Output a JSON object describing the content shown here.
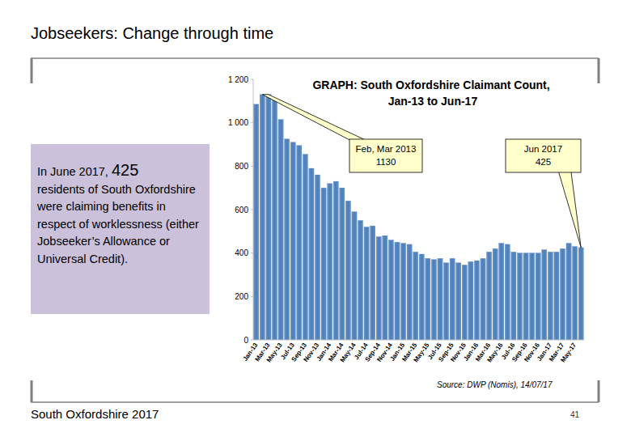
{
  "page": {
    "title": "Jobseekers: Change through time",
    "summary": {
      "prefix": "In June 2017, ",
      "number": "425",
      "text": "residents of South Oxfordshire were claiming benefits in respect of worklessness (either Jobseeker’s Allowance or Universal Credit)."
    },
    "source": "Source: DWP (Nomis), 14/07/17",
    "footer": "South Oxfordshire  2017",
    "page_number": "41"
  },
  "chart_data": {
    "type": "bar",
    "title": "GRAPH: South Oxfordshire Claimant Count, Jan-13 to Jun-17",
    "categories": [
      "Jan-13",
      null,
      "Mar-13",
      null,
      "May-13",
      null,
      "Jul-13",
      null,
      "Sep-13",
      null,
      "Nov-13",
      null,
      "Jan-14",
      null,
      "Mar-14",
      null,
      "May-14",
      null,
      "Jul-14",
      null,
      "Sep-14",
      null,
      "Nov-14",
      null,
      "Jan-15",
      null,
      "Mar-15",
      null,
      "May-15",
      null,
      "Jul-15",
      null,
      "Sep-15",
      null,
      "Nov-15",
      null,
      "Jan-16",
      null,
      "Mar-16",
      null,
      "May-16",
      null,
      "Jul-16",
      null,
      "Sep-16",
      null,
      "Nov-16",
      null,
      "Jan-17",
      null,
      "Mar-17",
      null,
      "May-17",
      null
    ],
    "values": [
      1085,
      1130,
      1130,
      1105,
      1015,
      925,
      910,
      895,
      855,
      790,
      760,
      700,
      720,
      730,
      700,
      640,
      590,
      550,
      520,
      525,
      475,
      480,
      460,
      450,
      445,
      440,
      405,
      395,
      375,
      370,
      375,
      355,
      375,
      355,
      345,
      360,
      365,
      375,
      405,
      420,
      445,
      440,
      405,
      400,
      400,
      400,
      400,
      415,
      405,
      405,
      420,
      445,
      430,
      425
    ],
    "color": "#4a7ebb",
    "ylim": [
      0,
      1200
    ],
    "yticks": [
      0,
      200,
      400,
      600,
      800,
      {
        "value": 1000,
        "label": "1 000"
      },
      {
        "value": 1200,
        "label": "1 200"
      }
    ],
    "grid": false,
    "annotations": [
      {
        "label": "Feb, Mar 2013",
        "value": 1130
      },
      {
        "label": "Jun 2017",
        "value": 425
      }
    ]
  }
}
